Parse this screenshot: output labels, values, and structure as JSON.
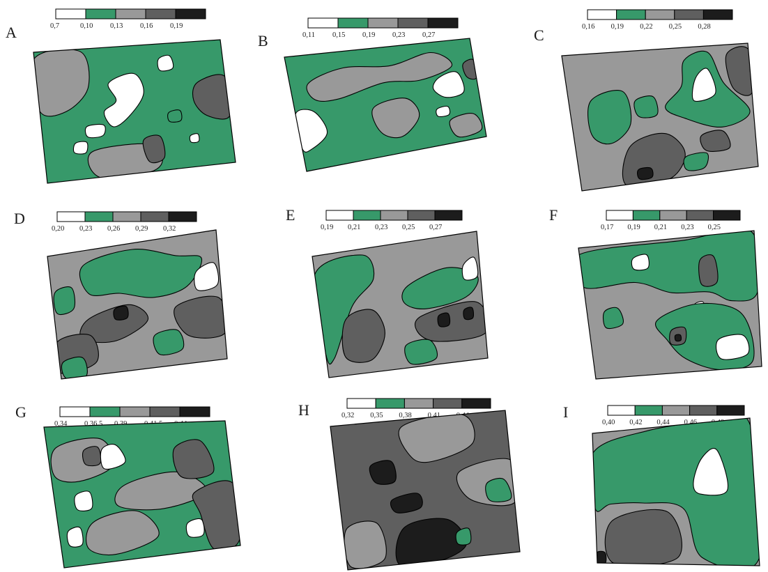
{
  "colors": {
    "class1": "#ffffff",
    "class2": "#37996a",
    "class3": "#999999",
    "class4": "#5f5f5f",
    "class5": "#1c1c1c",
    "outline": "#000000"
  },
  "panels": [
    {
      "letter": "A",
      "ticks": [
        "0,7",
        "0,10",
        "0,13",
        "0,16",
        "0,19"
      ],
      "base_class": 2,
      "zones": [
        3,
        4,
        1,
        1,
        3,
        4,
        1,
        2,
        1,
        1
      ]
    },
    {
      "letter": "B",
      "ticks": [
        "0,11",
        "0,15",
        "0,19",
        "0,23",
        "0,27"
      ],
      "base_class": 2,
      "zones": [
        3,
        3,
        1,
        1,
        4,
        1,
        3
      ]
    },
    {
      "letter": "C",
      "ticks": [
        "0,16",
        "0,19",
        "0,22",
        "0,25",
        "0,28"
      ],
      "base_class": 3,
      "zones": [
        2,
        2,
        1,
        2,
        4,
        4,
        2,
        5,
        4
      ]
    },
    {
      "letter": "D",
      "ticks": [
        "0,20",
        "0,23",
        "0,26",
        "0,29",
        "0,32"
      ],
      "base_class": 3,
      "zones": [
        2,
        4,
        4,
        5,
        2,
        4,
        1,
        2,
        2
      ]
    },
    {
      "letter": "E",
      "ticks": [
        "0,19",
        "0,21",
        "0,23",
        "0,25",
        "0,27"
      ],
      "base_class": 3,
      "zones": [
        2,
        2,
        4,
        4,
        5,
        5,
        2,
        1
      ]
    },
    {
      "letter": "F",
      "ticks": [
        "0,17",
        "0,19",
        "0,21",
        "0,23",
        "0,25"
      ],
      "base_class": 3,
      "zones": [
        2,
        1,
        4,
        1,
        2,
        4,
        5,
        2,
        1
      ]
    },
    {
      "letter": "G",
      "ticks": [
        "0,34",
        "0,36.5",
        "0,39",
        "0,41.5",
        "0,44"
      ],
      "base_class": 2,
      "zones": [
        3,
        4,
        1,
        1,
        3,
        4,
        1,
        1,
        4,
        1,
        3
      ]
    },
    {
      "letter": "H",
      "ticks": [
        "0,32",
        "0,35",
        "0,38",
        "0,41",
        "0,44"
      ],
      "base_class": 4,
      "zones": [
        3,
        3,
        5,
        5,
        3,
        2,
        2,
        5
      ]
    },
    {
      "letter": "I",
      "ticks": [
        "0,40",
        "0,42",
        "0,44",
        "0,46",
        "0,48"
      ],
      "base_class": 3,
      "zones": [
        2,
        1,
        4,
        5
      ]
    }
  ]
}
